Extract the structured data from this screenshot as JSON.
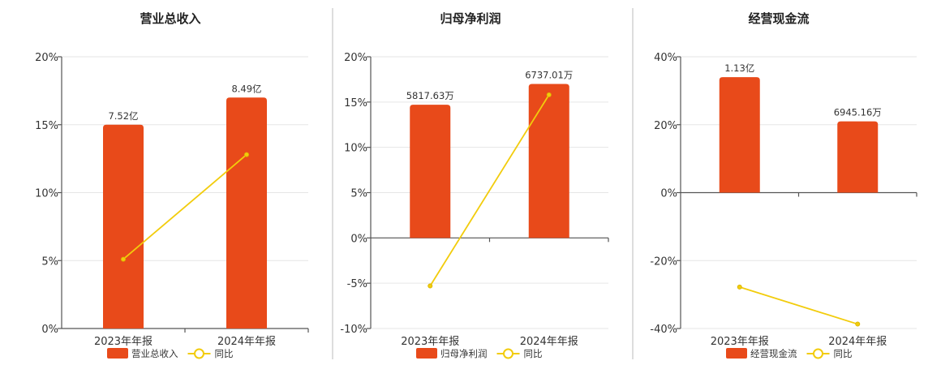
{
  "colors": {
    "bar": "#e84a1a",
    "line": "#f2cc0c",
    "point": "#f2cc0c"
  },
  "legend": {
    "line_label": "同比"
  },
  "chart_data": [
    {
      "type": "bar",
      "title": "营业总收入",
      "categories": [
        "2023年年报",
        "2024年年报"
      ],
      "bar_series": {
        "name": "营业总收入",
        "values": [
          15.0,
          17.0
        ],
        "labels": [
          "7.52亿",
          "8.49亿"
        ]
      },
      "line_series": {
        "name": "同比",
        "values": [
          5.1,
          12.8
        ]
      },
      "ylim": [
        0,
        20
      ],
      "yticks": [
        0,
        5,
        10,
        15,
        20
      ],
      "ytick_labels": [
        "0%",
        "5%",
        "10%",
        "15%",
        "20%"
      ],
      "grid": true,
      "legend_position": "bottom"
    },
    {
      "type": "bar",
      "title": "归母净利润",
      "categories": [
        "2023年年报",
        "2024年年报"
      ],
      "bar_series": {
        "name": "归母净利润",
        "values": [
          14.7,
          17.0
        ],
        "labels": [
          "5817.63万",
          "6737.01万"
        ]
      },
      "line_series": {
        "name": "同比",
        "values": [
          -5.3,
          15.8
        ]
      },
      "ylim": [
        -10,
        20
      ],
      "yticks": [
        -10,
        -5,
        0,
        5,
        10,
        15,
        20
      ],
      "ytick_labels": [
        "-10%",
        "-5%",
        "0%",
        "5%",
        "10%",
        "15%",
        "20%"
      ],
      "grid": true,
      "legend_position": "bottom"
    },
    {
      "type": "bar",
      "title": "经营现金流",
      "categories": [
        "2023年年报",
        "2024年年报"
      ],
      "bar_series": {
        "name": "经营现金流",
        "values": [
          34.0,
          21.0
        ],
        "labels": [
          "1.13亿",
          "6945.16万"
        ]
      },
      "line_series": {
        "name": "同比",
        "values": [
          -27.8,
          -38.7
        ]
      },
      "ylim": [
        -40,
        40
      ],
      "yticks": [
        -40,
        -20,
        0,
        20,
        40
      ],
      "ytick_labels": [
        "-40%",
        "-20%",
        "0%",
        "20%",
        "40%"
      ],
      "grid": true,
      "legend_position": "bottom"
    }
  ]
}
